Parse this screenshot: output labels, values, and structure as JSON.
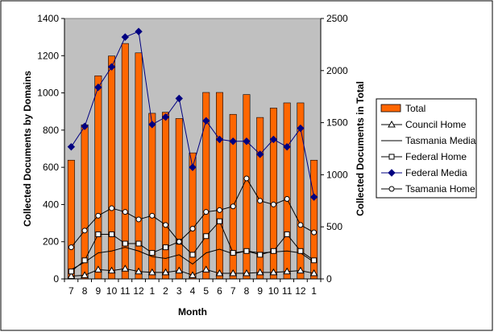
{
  "chart_data": {
    "type": "bar",
    "title": "",
    "xlabel": "Month",
    "ylabel_left": "Collected Documents by Domains",
    "ylabel_right": "Collected Documents in Total",
    "categories": [
      "7",
      "8",
      "9",
      "10",
      "11",
      "12",
      "1",
      "2",
      "3",
      "4",
      "5",
      "6",
      "7",
      "8",
      "9",
      "10",
      "11",
      "12",
      "1"
    ],
    "ylim_left": [
      0,
      1400
    ],
    "yticks_left": [
      0,
      200,
      400,
      600,
      800,
      1000,
      1200,
      1400
    ],
    "ylim_right": [
      0,
      2500
    ],
    "yticks_right": [
      0,
      500,
      1000,
      1500,
      2000,
      2500
    ],
    "plot_background": "#c0c0c0",
    "grid": false,
    "legend_position": "right",
    "series": [
      {
        "name": "Total",
        "type": "bar",
        "axis": "right",
        "color": "#ff6600",
        "marker": "none",
        "values": [
          1140,
          1480,
          1950,
          2140,
          2260,
          2170,
          1590,
          1600,
          1540,
          1210,
          1790,
          1790,
          1580,
          1770,
          1550,
          1640,
          1690,
          1690,
          1140
        ]
      },
      {
        "name": "Council Home",
        "type": "line",
        "axis": "left",
        "color": "#000000",
        "marker": "triangle",
        "values": [
          15,
          20,
          50,
          45,
          55,
          40,
          35,
          35,
          45,
          20,
          50,
          30,
          30,
          30,
          35,
          35,
          40,
          45,
          30
        ]
      },
      {
        "name": "Tasmania Media",
        "type": "line",
        "axis": "left",
        "color": "#000000",
        "marker": "none",
        "values": [
          50,
          90,
          140,
          150,
          170,
          150,
          120,
          110,
          130,
          80,
          140,
          160,
          135,
          150,
          140,
          145,
          150,
          140,
          90
        ]
      },
      {
        "name": "Federal Home",
        "type": "line",
        "axis": "left",
        "color": "#000000",
        "marker": "square",
        "values": [
          40,
          100,
          240,
          240,
          190,
          190,
          140,
          170,
          200,
          130,
          230,
          310,
          140,
          150,
          130,
          150,
          240,
          150,
          100
        ]
      },
      {
        "name": "Federal Media",
        "type": "line",
        "axis": "left",
        "color": "#000080",
        "marker": "diamond",
        "values": [
          710,
          820,
          1030,
          1140,
          1300,
          1330,
          830,
          870,
          970,
          600,
          850,
          750,
          740,
          740,
          670,
          750,
          710,
          810,
          440
        ]
      },
      {
        "name": "Tsamania Home",
        "type": "line",
        "axis": "left",
        "color": "#000000",
        "marker": "circle",
        "values": [
          170,
          260,
          340,
          380,
          360,
          320,
          340,
          290,
          200,
          270,
          360,
          370,
          390,
          540,
          420,
          400,
          430,
          290,
          250
        ]
      }
    ]
  }
}
